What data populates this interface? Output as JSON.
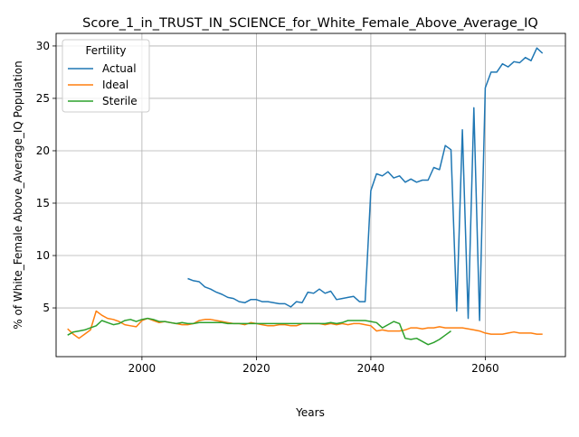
{
  "chart_data": {
    "type": "line",
    "title": "Score_1_in_TRUST_IN_SCIENCE_for_White_Female_Above_Average_IQ",
    "xlabel": "Years",
    "ylabel": "% of White_Female Above_Average_IQ Population",
    "xlim": [
      1985,
      2074
    ],
    "ylim": [
      0.35,
      31.2
    ],
    "xticks": [
      2000,
      2020,
      2040,
      2060
    ],
    "yticks": [
      5,
      10,
      15,
      20,
      25,
      30
    ],
    "grid": true,
    "legend": {
      "title": "Fertility",
      "placement": "top-left"
    },
    "series": [
      {
        "name": "Actual",
        "color": "#1f77b4",
        "x": [
          2008,
          2009,
          2010,
          2011,
          2012,
          2013,
          2014,
          2015,
          2016,
          2017,
          2018,
          2019,
          2020,
          2021,
          2022,
          2023,
          2024,
          2025,
          2026,
          2027,
          2028,
          2029,
          2030,
          2031,
          2032,
          2033,
          2034,
          2035,
          2036,
          2037,
          2038,
          2039,
          2040,
          2041,
          2042,
          2043,
          2044,
          2045,
          2046,
          2047,
          2048,
          2049,
          2050,
          2051,
          2052,
          2053,
          2054,
          2055,
          2056,
          2057,
          2058,
          2059,
          2060,
          2061,
          2062,
          2063,
          2064,
          2065,
          2066,
          2067,
          2068,
          2069,
          2070
        ],
        "y": [
          7.8,
          7.6,
          7.5,
          7.0,
          6.8,
          6.5,
          6.3,
          6.0,
          5.9,
          5.6,
          5.5,
          5.8,
          5.8,
          5.6,
          5.6,
          5.5,
          5.4,
          5.4,
          5.1,
          5.6,
          5.5,
          6.5,
          6.4,
          6.8,
          6.4,
          6.6,
          5.8,
          5.9,
          6.0,
          6.1,
          5.6,
          5.6,
          16.2,
          17.8,
          17.6,
          18.0,
          17.4,
          17.6,
          17.0,
          17.3,
          17.0,
          17.2,
          17.2,
          18.4,
          18.2,
          20.5,
          20.1,
          4.7,
          22.0,
          4.0,
          24.1,
          3.8,
          26.0,
          27.5,
          27.5,
          28.3,
          28.0,
          28.5,
          28.4,
          28.9,
          28.6,
          29.8,
          29.3
        ]
      },
      {
        "name": "Ideal",
        "color": "#ff7f0e",
        "x": [
          1987,
          1988,
          1989,
          1990,
          1991,
          1992,
          1993,
          1994,
          1995,
          1996,
          1997,
          1998,
          1999,
          2000,
          2001,
          2002,
          2003,
          2004,
          2005,
          2006,
          2007,
          2008,
          2009,
          2010,
          2011,
          2012,
          2013,
          2014,
          2015,
          2016,
          2017,
          2018,
          2019,
          2020,
          2021,
          2022,
          2023,
          2024,
          2025,
          2026,
          2027,
          2028,
          2029,
          2030,
          2031,
          2032,
          2033,
          2034,
          2035,
          2036,
          2037,
          2038,
          2039,
          2040,
          2041,
          2042,
          2043,
          2044,
          2045,
          2046,
          2047,
          2048,
          2049,
          2050,
          2051,
          2052,
          2053,
          2054,
          2055,
          2056,
          2057,
          2058,
          2059,
          2060,
          2061,
          2062,
          2063,
          2064,
          2065,
          2066,
          2067,
          2068,
          2069,
          2070
        ],
        "y": [
          3.0,
          2.5,
          2.1,
          2.5,
          2.9,
          4.7,
          4.3,
          4.0,
          3.9,
          3.7,
          3.4,
          3.3,
          3.2,
          3.8,
          4.0,
          3.8,
          3.6,
          3.7,
          3.6,
          3.5,
          3.4,
          3.4,
          3.5,
          3.8,
          3.9,
          3.9,
          3.8,
          3.7,
          3.6,
          3.5,
          3.5,
          3.4,
          3.6,
          3.5,
          3.4,
          3.3,
          3.3,
          3.4,
          3.4,
          3.3,
          3.3,
          3.5,
          3.5,
          3.5,
          3.5,
          3.4,
          3.5,
          3.4,
          3.5,
          3.4,
          3.5,
          3.5,
          3.4,
          3.3,
          2.8,
          2.9,
          2.8,
          2.8,
          2.8,
          2.9,
          3.1,
          3.1,
          3.0,
          3.1,
          3.1,
          3.2,
          3.1,
          3.1,
          3.1,
          3.1,
          3.0,
          2.9,
          2.8,
          2.6,
          2.5,
          2.5,
          2.5,
          2.6,
          2.7,
          2.6,
          2.6,
          2.6,
          2.5,
          2.5
        ]
      },
      {
        "name": "Sterile",
        "color": "#2ca02c",
        "x": [
          1987,
          1988,
          1989,
          1990,
          1991,
          1992,
          1993,
          1994,
          1995,
          1996,
          1997,
          1998,
          1999,
          2000,
          2001,
          2002,
          2003,
          2004,
          2005,
          2006,
          2007,
          2008,
          2009,
          2010,
          2011,
          2012,
          2013,
          2014,
          2015,
          2016,
          2017,
          2018,
          2019,
          2020,
          2021,
          2022,
          2023,
          2024,
          2025,
          2026,
          2027,
          2028,
          2029,
          2030,
          2031,
          2032,
          2033,
          2034,
          2035,
          2036,
          2037,
          2038,
          2039,
          2040,
          2041,
          2042,
          2043,
          2044,
          2045,
          2046,
          2047,
          2048,
          2049,
          2050,
          2051,
          2052,
          2053,
          2054
        ],
        "y": [
          2.4,
          2.7,
          2.8,
          2.9,
          3.1,
          3.3,
          3.8,
          3.6,
          3.4,
          3.5,
          3.8,
          3.9,
          3.7,
          3.9,
          4.0,
          3.9,
          3.7,
          3.7,
          3.6,
          3.5,
          3.6,
          3.5,
          3.5,
          3.6,
          3.6,
          3.6,
          3.6,
          3.6,
          3.5,
          3.5,
          3.5,
          3.5,
          3.5,
          3.5,
          3.5,
          3.5,
          3.5,
          3.5,
          3.5,
          3.5,
          3.5,
          3.5,
          3.5,
          3.5,
          3.5,
          3.5,
          3.6,
          3.5,
          3.6,
          3.8,
          3.8,
          3.8,
          3.8,
          3.7,
          3.6,
          3.1,
          3.4,
          3.7,
          3.5,
          2.1,
          2.0,
          2.1,
          1.8,
          1.5,
          1.7,
          2.0,
          2.4,
          2.8
        ]
      }
    ]
  }
}
